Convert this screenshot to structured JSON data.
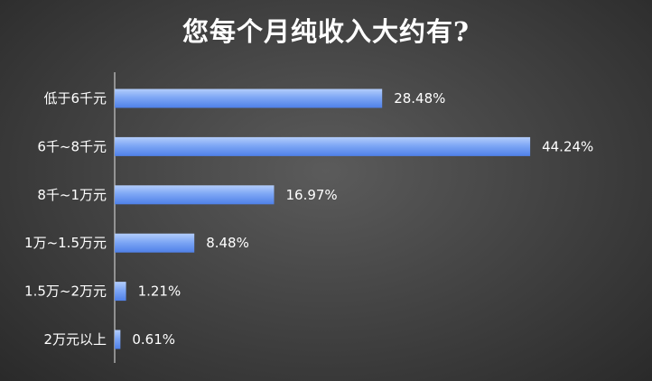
{
  "chart_data": {
    "type": "bar",
    "orientation": "horizontal",
    "title": "您每个月纯收入大约有?",
    "categories": [
      "低于6千元",
      "6千~8千元",
      "8千~1万元",
      "1万~1.5万元",
      "1.5万~2万元",
      "2万元以上"
    ],
    "values": [
      28.48,
      44.24,
      16.97,
      8.48,
      1.21,
      0.61
    ],
    "value_labels": [
      "28.48%",
      "44.24%",
      "16.97%",
      "8.48%",
      "1.21%",
      "0.61%"
    ],
    "xlim": [
      0,
      45
    ],
    "xlabel": "",
    "ylabel": "",
    "grid": false,
    "legend": "none",
    "bar_color": "#6f9ef5"
  }
}
